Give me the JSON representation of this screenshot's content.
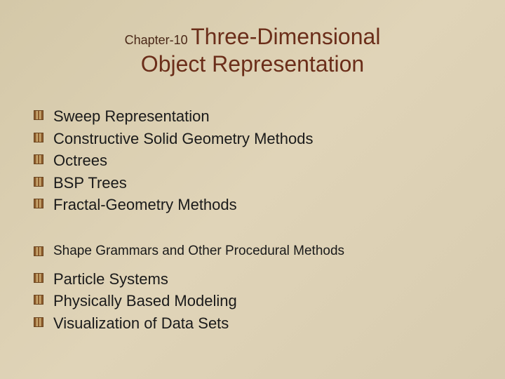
{
  "slide": {
    "chapter_label": "Chapter-10",
    "title_line1": "Three-Dimensional",
    "title_line2": "Object Representation",
    "bullets_group1": [
      "Sweep Representation",
      "Constructive Solid Geometry Methods",
      "Octrees",
      "BSP Trees",
      "Fractal-Geometry Methods"
    ],
    "bullets_group2_small": [
      "Shape Grammars and Other Procedural Methods"
    ],
    "bullets_group3": [
      "Particle Systems",
      "Physically Based Modeling",
      "Visualization of Data Sets"
    ]
  },
  "styling": {
    "background_gradient": [
      "#d4c8a8",
      "#e0d4b8",
      "#d8ccb0"
    ],
    "title_color": "#6b2e1a",
    "chapter_color": "#4a2818",
    "text_color": "#1a1a1a",
    "bullet_colors": [
      "#8b5a2b",
      "#c9a870"
    ],
    "title_fontsize": 32,
    "chapter_fontsize": 18,
    "bullet_fontsize": 22,
    "bullet_small_fontsize": 19,
    "slide_width": 720,
    "slide_height": 540
  }
}
